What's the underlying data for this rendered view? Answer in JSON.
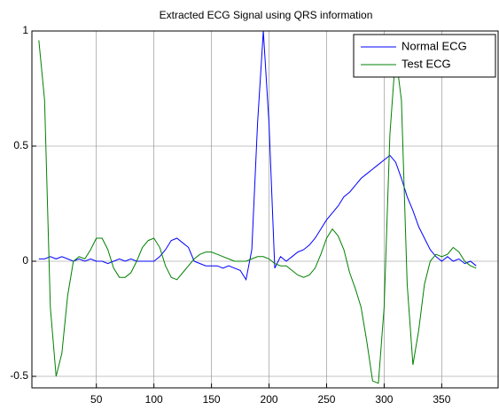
{
  "chart_data": {
    "type": "line",
    "title": "Extracted ECG Signal using QRS information",
    "x": [
      0,
      5,
      10,
      15,
      20,
      25,
      30,
      35,
      40,
      45,
      50,
      55,
      60,
      65,
      70,
      75,
      80,
      85,
      90,
      95,
      100,
      105,
      110,
      115,
      120,
      125,
      130,
      135,
      140,
      145,
      150,
      155,
      160,
      165,
      170,
      175,
      180,
      185,
      190,
      195,
      200,
      205,
      210,
      215,
      220,
      225,
      230,
      235,
      240,
      245,
      250,
      255,
      260,
      265,
      270,
      275,
      280,
      285,
      290,
      295,
      300,
      305,
      310,
      315,
      320,
      325,
      330,
      335,
      340,
      345,
      350,
      355,
      360,
      365,
      370,
      375,
      380
    ],
    "series": [
      {
        "name": "Normal ECG",
        "color": "#0000ff",
        "values": [
          0.01,
          0.01,
          0.02,
          0.01,
          0.02,
          0.01,
          0.0,
          0.01,
          0.0,
          0.01,
          0.0,
          0.0,
          -0.01,
          0.0,
          0.01,
          0.0,
          0.01,
          0.0,
          0.0,
          0.0,
          0.0,
          0.02,
          0.05,
          0.09,
          0.1,
          0.08,
          0.06,
          0.0,
          -0.01,
          -0.02,
          -0.02,
          -0.02,
          -0.03,
          -0.02,
          -0.03,
          -0.04,
          -0.08,
          0.05,
          0.6,
          1.0,
          0.6,
          -0.03,
          0.02,
          0.0,
          0.02,
          0.04,
          0.05,
          0.07,
          0.1,
          0.14,
          0.18,
          0.21,
          0.24,
          0.28,
          0.3,
          0.33,
          0.36,
          0.38,
          0.4,
          0.42,
          0.44,
          0.46,
          0.43,
          0.36,
          0.28,
          0.22,
          0.15,
          0.1,
          0.05,
          0.02,
          0.0,
          0.02,
          0.0,
          0.01,
          -0.01,
          0.0,
          -0.02
        ]
      },
      {
        "name": "Test ECG",
        "color": "#008000",
        "values": [
          0.96,
          0.7,
          -0.2,
          -0.5,
          -0.4,
          -0.15,
          0.0,
          0.02,
          0.01,
          0.05,
          0.1,
          0.1,
          0.05,
          -0.03,
          -0.07,
          -0.07,
          -0.05,
          0.0,
          0.06,
          0.09,
          0.1,
          0.06,
          -0.02,
          -0.07,
          -0.08,
          -0.05,
          -0.02,
          0.01,
          0.03,
          0.04,
          0.04,
          0.03,
          0.02,
          0.01,
          0.0,
          0.0,
          0.0,
          0.01,
          0.02,
          0.02,
          0.01,
          -0.01,
          -0.02,
          -0.02,
          -0.04,
          -0.06,
          -0.07,
          -0.06,
          -0.03,
          0.03,
          0.1,
          0.14,
          0.11,
          0.05,
          -0.05,
          -0.12,
          -0.2,
          -0.35,
          -0.52,
          -0.53,
          -0.2,
          0.55,
          0.9,
          0.7,
          -0.1,
          -0.45,
          -0.3,
          -0.1,
          0.0,
          0.03,
          0.02,
          0.03,
          0.06,
          0.04,
          0.0,
          -0.02,
          -0.03
        ]
      }
    ],
    "xlim": [
      -6,
      399
    ],
    "xticks": [
      50,
      100,
      150,
      200,
      250,
      300,
      350
    ],
    "ylim": [
      -0.55,
      1
    ],
    "yticks": [
      -0.5,
      0,
      0.5,
      1
    ],
    "grid": true,
    "legend": "upper right"
  }
}
